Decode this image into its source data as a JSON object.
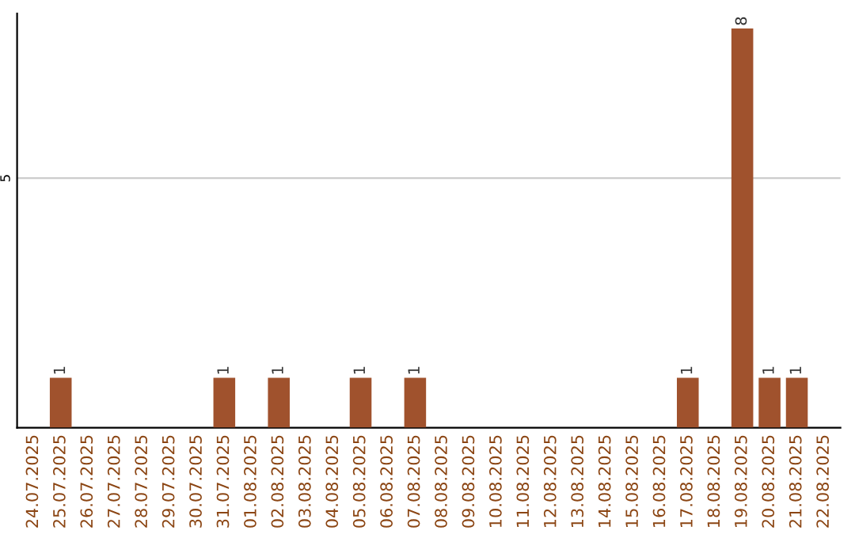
{
  "chart_data": {
    "type": "bar",
    "categories": [
      "24.07.2025",
      "25.07.2025",
      "26.07.2025",
      "27.07.2025",
      "28.07.2025",
      "29.07.2025",
      "30.07.2025",
      "31.07.2025",
      "01.08.2025",
      "02.08.2025",
      "03.08.2025",
      "04.08.2025",
      "05.08.2025",
      "06.08.2025",
      "07.08.2025",
      "08.08.2025",
      "09.08.2025",
      "10.08.2025",
      "11.08.2025",
      "12.08.2025",
      "13.08.2025",
      "14.08.2025",
      "15.08.2025",
      "16.08.2025",
      "17.08.2025",
      "18.08.2025",
      "19.08.2025",
      "20.08.2025",
      "21.08.2025",
      "22.08.2025"
    ],
    "values": [
      0,
      1,
      0,
      0,
      0,
      0,
      0,
      1,
      0,
      1,
      0,
      0,
      1,
      0,
      1,
      0,
      0,
      0,
      0,
      0,
      0,
      0,
      0,
      0,
      1,
      0,
      8,
      1,
      1,
      0
    ],
    "value_labels": [
      null,
      "1",
      null,
      null,
      null,
      null,
      null,
      "1",
      null,
      "1",
      null,
      null,
      "1",
      null,
      "1",
      null,
      null,
      null,
      null,
      null,
      null,
      null,
      null,
      null,
      "1",
      null,
      "8",
      "1",
      "1",
      null
    ],
    "color": "#a0522d",
    "ylim": [
      0,
      8.3
    ],
    "yticks": [
      5
    ],
    "grid": "y",
    "legend": false
  }
}
